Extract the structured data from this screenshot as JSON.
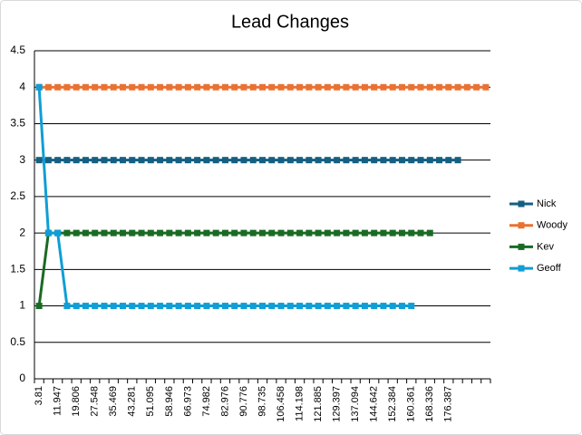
{
  "chart_data": {
    "type": "line",
    "title": "Lead Changes",
    "categories": [
      "3.81",
      null,
      "11.947",
      null,
      "19.806",
      null,
      "27.548",
      null,
      "35.469",
      null,
      "43.281",
      null,
      "51.095",
      null,
      "58.946",
      null,
      "66.973",
      null,
      "74.982",
      null,
      "82.976",
      null,
      "90.776",
      null,
      "98.735",
      null,
      "106.458",
      null,
      "114.198",
      null,
      "121.885",
      null,
      "129.397",
      null,
      "137.094",
      null,
      "144.642",
      null,
      "152.384",
      null,
      "160.361",
      null,
      "168.336",
      null,
      "176.387",
      null,
      null,
      null,
      null
    ],
    "series": [
      {
        "name": "Nick",
        "color": "#156082",
        "values": [
          3,
          3,
          3,
          3,
          3,
          3,
          3,
          3,
          3,
          3,
          3,
          3,
          3,
          3,
          3,
          3,
          3,
          3,
          3,
          3,
          3,
          3,
          3,
          3,
          3,
          3,
          3,
          3,
          3,
          3,
          3,
          3,
          3,
          3,
          3,
          3,
          3,
          3,
          3,
          3,
          3,
          3,
          3,
          3,
          3,
          3,
          null,
          null,
          null
        ]
      },
      {
        "name": "Woody",
        "color": "#e97132",
        "values": [
          4,
          4,
          4,
          4,
          4,
          4,
          4,
          4,
          4,
          4,
          4,
          4,
          4,
          4,
          4,
          4,
          4,
          4,
          4,
          4,
          4,
          4,
          4,
          4,
          4,
          4,
          4,
          4,
          4,
          4,
          4,
          4,
          4,
          4,
          4,
          4,
          4,
          4,
          4,
          4,
          4,
          4,
          4,
          4,
          4,
          4,
          4,
          4,
          4
        ]
      },
      {
        "name": "Kev",
        "color": "#196b24",
        "values": [
          1,
          2,
          2,
          2,
          2,
          2,
          2,
          2,
          2,
          2,
          2,
          2,
          2,
          2,
          2,
          2,
          2,
          2,
          2,
          2,
          2,
          2,
          2,
          2,
          2,
          2,
          2,
          2,
          2,
          2,
          2,
          2,
          2,
          2,
          2,
          2,
          2,
          2,
          2,
          2,
          2,
          2,
          2,
          null,
          null,
          null,
          null,
          null,
          null
        ]
      },
      {
        "name": "Geoff",
        "color": "#0f9ed5",
        "values": [
          4,
          2,
          2,
          1,
          1,
          1,
          1,
          1,
          1,
          1,
          1,
          1,
          1,
          1,
          1,
          1,
          1,
          1,
          1,
          1,
          1,
          1,
          1,
          1,
          1,
          1,
          1,
          1,
          1,
          1,
          1,
          1,
          1,
          1,
          1,
          1,
          1,
          1,
          1,
          1,
          1,
          null,
          null,
          null,
          null,
          null,
          null,
          null,
          null
        ]
      }
    ],
    "ylim": [
      0,
      4.5
    ],
    "yticks": [
      0,
      0.5,
      1,
      1.5,
      2,
      2.5,
      3,
      3.5,
      4,
      4.5
    ],
    "grid": true,
    "legend": "right"
  }
}
